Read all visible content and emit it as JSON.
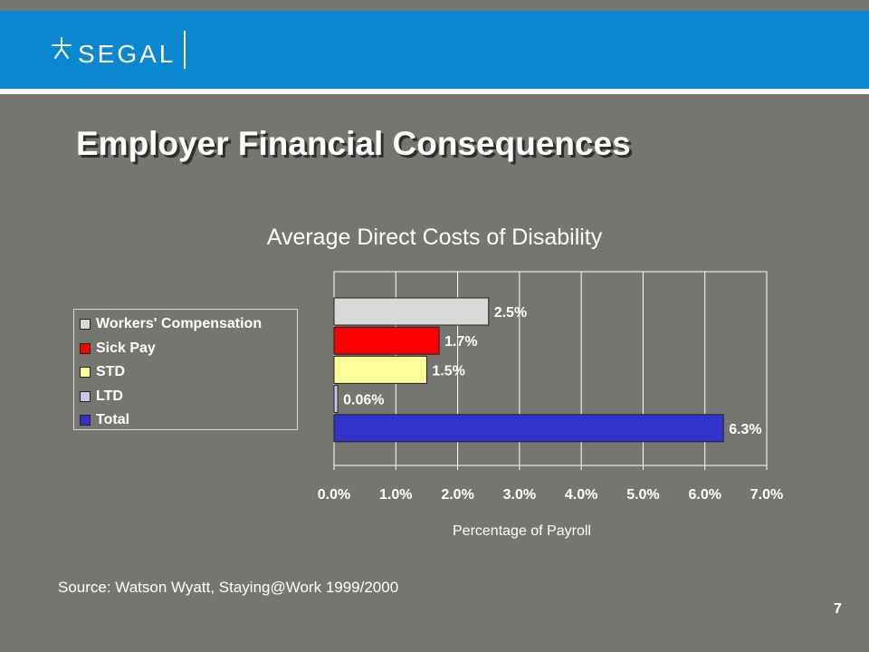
{
  "header": {
    "logo_text": "SEGAL",
    "brand_color": "#0a88cf"
  },
  "slide": {
    "title": "Employer Financial Consequences",
    "source_note": "Source: Watson Wyatt, Staying@Work 1999/2000",
    "page_number": "7"
  },
  "chart_data": {
    "type": "bar",
    "orientation": "horizontal",
    "title": "Average Direct Costs of Disability",
    "xlabel": "Percentage of Payroll",
    "ylabel": "",
    "xlim": [
      0,
      7
    ],
    "x_ticks": [
      "0.0%",
      "1.0%",
      "2.0%",
      "3.0%",
      "4.0%",
      "5.0%",
      "6.0%",
      "7.0%"
    ],
    "grid": "vertical",
    "legend_position": "left",
    "categories": [
      "Workers' Compensation",
      "Sick Pay",
      "STD",
      "LTD",
      "Total"
    ],
    "values": [
      2.5,
      1.7,
      1.5,
      0.06,
      6.3
    ],
    "data_labels": [
      "2.5%",
      "1.7%",
      "1.5%",
      "0.06%",
      "6.3%"
    ],
    "colors": [
      "#d9d9d9",
      "#ff0000",
      "#ffff99",
      "#c6c6ea",
      "#3333cc"
    ]
  }
}
